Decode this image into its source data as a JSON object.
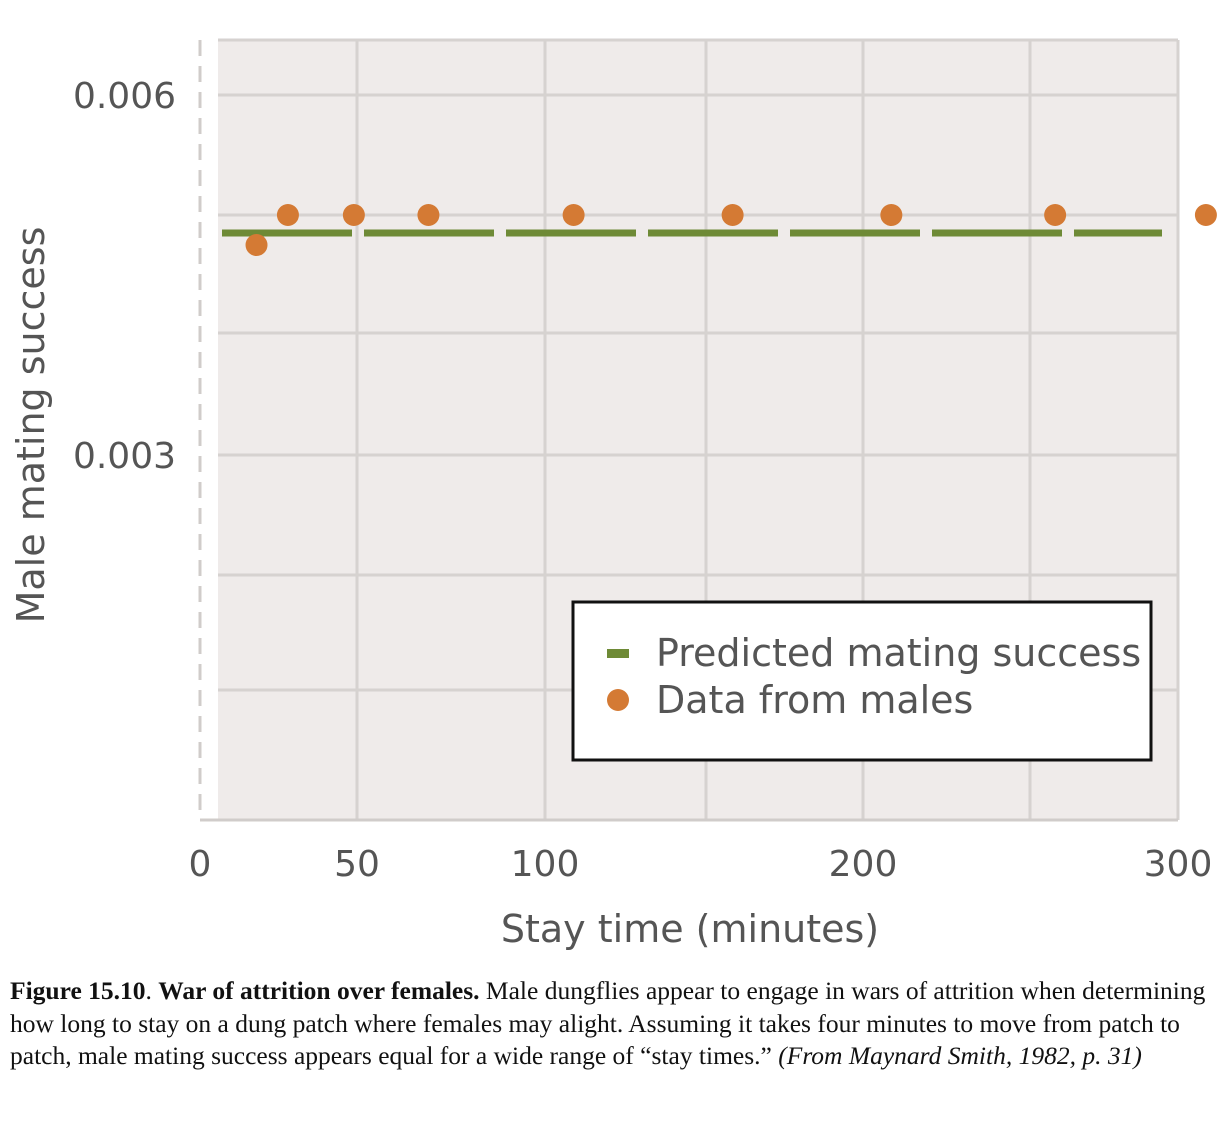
{
  "chart_data": {
    "type": "scatter",
    "xlabel": "Stay time (minutes)",
    "ylabel": "Male mating success",
    "x_ticks": [
      "0",
      "50",
      "100",
      "200",
      "300"
    ],
    "y_ticks": [
      "0.006",
      "0.003"
    ],
    "series": [
      {
        "name": "Predicted mating success",
        "kind": "dashed-line",
        "color": "#6e8a36",
        "value": 0.00485
      },
      {
        "name": "Data from males",
        "kind": "points",
        "color": "#d47a34",
        "points": [
          {
            "x": 18,
            "y": 0.00475
          },
          {
            "x": 28,
            "y": 0.005
          },
          {
            "x": 49,
            "y": 0.005
          },
          {
            "x": 69,
            "y": 0.005
          },
          {
            "x": 109,
            "y": 0.005
          },
          {
            "x": 159,
            "y": 0.005
          },
          {
            "x": 209,
            "y": 0.005
          },
          {
            "x": 261,
            "y": 0.005
          },
          {
            "x": 309,
            "y": 0.005
          }
        ]
      }
    ],
    "legend_position": "bottom-right",
    "grid": true,
    "plot_background": "#efebea",
    "grid_color": "#d6d2d0"
  },
  "caption": {
    "figure_label": "Figure 15.10",
    "sep": ". ",
    "title": "War of attrition over females.",
    "body": " Male dungflies appear to engage in wars of attrition when determining how long to stay on a dung patch where females may alight. Assuming it takes four minutes to move from patch to patch, male mating success appears equal for a wide range of “stay times.” ",
    "source": "(From Maynard Smith, 1982, p. 31)"
  }
}
